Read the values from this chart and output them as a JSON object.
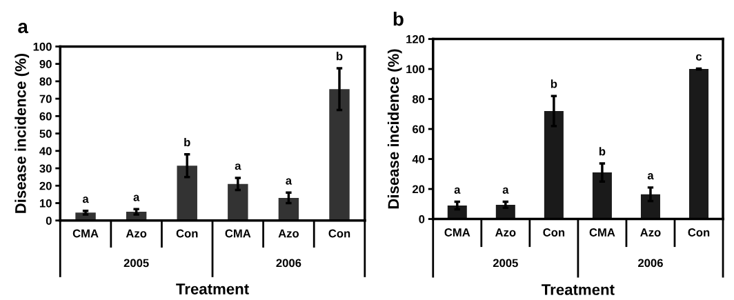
{
  "chart_data": [
    {
      "type": "bar",
      "title": "a",
      "xlabel": "Treatment",
      "ylabel": "Disease incidence (%)",
      "categories": [
        "CMA",
        "Azo",
        "Con",
        "CMA",
        "Azo",
        "Con"
      ],
      "values": [
        4.5,
        5,
        31.5,
        21,
        13,
        75.5
      ],
      "errors": [
        1,
        1.5,
        6.5,
        3.5,
        3,
        12
      ],
      "color": "#333333",
      "value_labels": [
        "a",
        "a",
        "b",
        "a",
        "a",
        "b"
      ],
      "annotations": [
        "2005",
        "2006"
      ],
      "ylim": [
        0,
        100
      ],
      "yticks": [
        0,
        10,
        20,
        30,
        40,
        50,
        60,
        70,
        80,
        90,
        100
      ],
      "grid": false,
      "legend": false
    },
    {
      "type": "bar",
      "title": "b",
      "xlabel": "Treatment",
      "ylabel": "Disease incidence (%)",
      "categories": [
        "CMA",
        "Azo",
        "Con",
        "CMA",
        "Azo",
        "Con"
      ],
      "values": [
        9,
        9.5,
        72,
        31,
        16.5,
        100
      ],
      "errors": [
        2.5,
        2,
        10,
        6,
        4.5,
        0.3
      ],
      "color": "#1a1a1a",
      "value_labels": [
        "a",
        "a",
        "b",
        "b",
        "a",
        "c"
      ],
      "annotations": [
        "2005",
        "2006"
      ],
      "ylim": [
        0,
        120
      ],
      "yticks": [
        0,
        20,
        40,
        60,
        80,
        100,
        120
      ],
      "grid": false,
      "legend": false
    }
  ]
}
